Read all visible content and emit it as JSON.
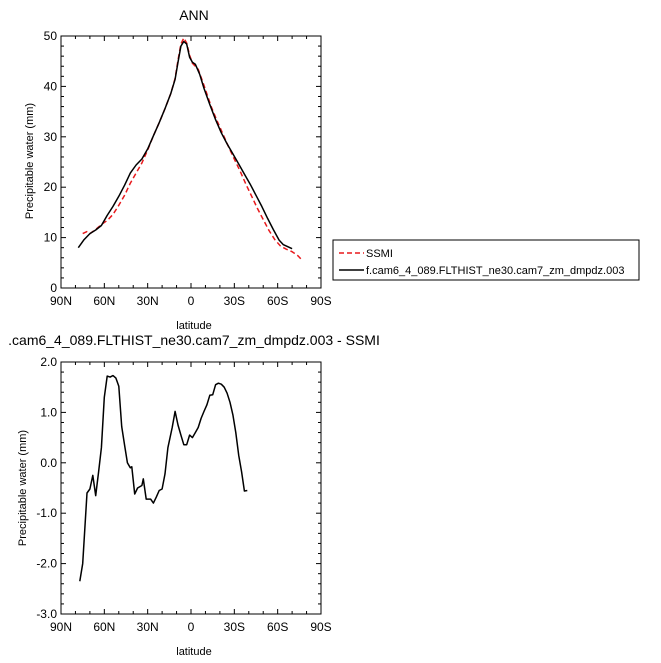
{
  "chart_data": [
    {
      "type": "line",
      "title": "ANN",
      "xlabel": "latitude",
      "ylabel": "Precipitable water (mm)",
      "xlim": [
        90,
        -90
      ],
      "ylim": [
        0,
        50
      ],
      "x_ticks": [
        90,
        60,
        30,
        0,
        -30,
        -60,
        -90
      ],
      "x_tick_labels": [
        "90N",
        "60N",
        "30N",
        "0",
        "30S",
        "60S",
        "90S"
      ],
      "y_ticks": [
        0,
        10,
        20,
        30,
        40,
        50
      ],
      "y_tick_labels": [
        "0",
        "10",
        "20",
        "30",
        "40",
        "50"
      ],
      "legend_position": "right",
      "series": [
        {
          "name": "SSMI",
          "color": "#e8191c",
          "dash": "dashed",
          "points": [
            [
              75,
              10.8
            ],
            [
              72,
              11.2
            ],
            [
              70,
              10.8
            ],
            [
              66,
              11.6
            ],
            [
              62,
              12.6
            ],
            [
              58,
              13.4
            ],
            [
              54,
              14.6
            ],
            [
              50,
              16.4
            ],
            [
              46,
              18.4
            ],
            [
              42,
              20.8
            ],
            [
              38,
              22.8
            ],
            [
              34,
              24.8
            ],
            [
              30,
              27.4
            ],
            [
              26,
              30.2
            ],
            [
              22,
              32.8
            ],
            [
              18,
              35.6
            ],
            [
              14,
              38.6
            ],
            [
              11,
              41.6
            ],
            [
              9,
              45.2
            ],
            [
              7,
              48.4
            ],
            [
              5,
              49.6
            ],
            [
              3,
              48.6
            ],
            [
              1,
              46.2
            ],
            [
              -1,
              44.6
            ],
            [
              -3,
              44.0
            ],
            [
              -5,
              43.4
            ],
            [
              -9,
              40.2
            ],
            [
              -14,
              36.0
            ],
            [
              -18,
              33.2
            ],
            [
              -22,
              30.6
            ],
            [
              -26,
              28.0
            ],
            [
              -30,
              25.6
            ],
            [
              -34,
              23.2
            ],
            [
              -38,
              20.6
            ],
            [
              -42,
              18.2
            ],
            [
              -46,
              15.8
            ],
            [
              -50,
              13.6
            ],
            [
              -54,
              11.4
            ],
            [
              -58,
              9.6
            ],
            [
              -62,
              8.3
            ],
            [
              -66,
              7.7
            ],
            [
              -70,
              7.2
            ],
            [
              -74,
              6.4
            ],
            [
              -76,
              5.8
            ]
          ]
        },
        {
          "name": "f.cam6_4_089.FLTHIST_ne30.cam7_zm_dmpdz.003",
          "color": "#000000",
          "dash": "solid",
          "points": [
            [
              78,
              8.0
            ],
            [
              74,
              9.6
            ],
            [
              70,
              10.8
            ],
            [
              66,
              11.5
            ],
            [
              62,
              12.4
            ],
            [
              58,
              14.4
            ],
            [
              54,
              16.2
            ],
            [
              50,
              18.2
            ],
            [
              46,
              20.4
            ],
            [
              42,
              22.8
            ],
            [
              38,
              24.4
            ],
            [
              34,
              25.6
            ],
            [
              30,
              27.6
            ],
            [
              26,
              30.2
            ],
            [
              22,
              32.8
            ],
            [
              18,
              35.6
            ],
            [
              14,
              38.6
            ],
            [
              11,
              41.4
            ],
            [
              9,
              44.8
            ],
            [
              7,
              48.0
            ],
            [
              5,
              48.9
            ],
            [
              3,
              48.4
            ],
            [
              1,
              45.8
            ],
            [
              -1,
              44.8
            ],
            [
              -3,
              44.4
            ],
            [
              -6,
              42.4
            ],
            [
              -9,
              39.6
            ],
            [
              -13,
              36.4
            ],
            [
              -17,
              33.4
            ],
            [
              -21,
              30.8
            ],
            [
              -25,
              28.6
            ],
            [
              -29,
              26.6
            ],
            [
              -33,
              24.6
            ],
            [
              -37,
              22.6
            ],
            [
              -41,
              20.6
            ],
            [
              -45,
              18.4
            ],
            [
              -49,
              16.2
            ],
            [
              -53,
              13.8
            ],
            [
              -57,
              11.6
            ],
            [
              -61,
              9.5
            ],
            [
              -64,
              8.6
            ],
            [
              -67,
              8.2
            ],
            [
              -70,
              7.8
            ]
          ]
        }
      ]
    },
    {
      "type": "line",
      "title": ".cam6_4_089.FLTHIST_ne30.cam7_zm_dmpdz.003 - SSMI",
      "xlabel": "latitude",
      "ylabel": "Precipitable water (mm)",
      "xlim": [
        90,
        -90
      ],
      "ylim": [
        -3.0,
        2.0
      ],
      "x_ticks": [
        90,
        60,
        30,
        0,
        -30,
        -60,
        -90
      ],
      "x_tick_labels": [
        "90N",
        "60N",
        "30N",
        "0",
        "30S",
        "60S",
        "90S"
      ],
      "y_ticks": [
        -3.0,
        -2.0,
        -1.0,
        0.0,
        1.0,
        2.0
      ],
      "y_tick_labels": [
        "-3.0",
        "-2.0",
        "-1.0",
        "0.0",
        "1.0",
        "2.0"
      ],
      "series": [
        {
          "color": "#000000",
          "dash": "solid",
          "points": [
            [
              77,
              -2.35
            ],
            [
              75,
              -2.0
            ],
            [
              72,
              -0.6
            ],
            [
              70,
              -0.52
            ],
            [
              68,
              -0.25
            ],
            [
              66,
              -0.65
            ],
            [
              64,
              -0.18
            ],
            [
              62,
              0.3
            ],
            [
              60,
              1.3
            ],
            [
              58,
              1.72
            ],
            [
              56,
              1.7
            ],
            [
              54,
              1.73
            ],
            [
              52,
              1.68
            ],
            [
              50,
              1.52
            ],
            [
              48,
              0.72
            ],
            [
              46,
              0.35
            ],
            [
              44,
              0.0
            ],
            [
              42,
              -0.1
            ],
            [
              41,
              -0.08
            ],
            [
              39,
              -0.62
            ],
            [
              37,
              -0.5
            ],
            [
              34,
              -0.45
            ],
            [
              33,
              -0.32
            ],
            [
              31,
              -0.72
            ],
            [
              28,
              -0.72
            ],
            [
              26,
              -0.8
            ],
            [
              24,
              -0.68
            ],
            [
              22,
              -0.55
            ],
            [
              20,
              -0.52
            ],
            [
              18,
              -0.22
            ],
            [
              16,
              0.3
            ],
            [
              13,
              0.7
            ],
            [
              11,
              1.02
            ],
            [
              9,
              0.75
            ],
            [
              7,
              0.55
            ],
            [
              5,
              0.36
            ],
            [
              3,
              0.36
            ],
            [
              1,
              0.55
            ],
            [
              -1,
              0.5
            ],
            [
              -3,
              0.6
            ],
            [
              -5,
              0.7
            ],
            [
              -7,
              0.88
            ],
            [
              -9,
              1.02
            ],
            [
              -11,
              1.15
            ],
            [
              -13,
              1.34
            ],
            [
              -15,
              1.35
            ],
            [
              -17,
              1.55
            ],
            [
              -19,
              1.58
            ],
            [
              -21,
              1.56
            ],
            [
              -23,
              1.5
            ],
            [
              -25,
              1.38
            ],
            [
              -27,
              1.2
            ],
            [
              -29,
              0.95
            ],
            [
              -31,
              0.6
            ],
            [
              -33,
              0.15
            ],
            [
              -35,
              -0.18
            ],
            [
              -37,
              -0.56
            ],
            [
              -39,
              -0.55
            ]
          ]
        }
      ]
    }
  ]
}
